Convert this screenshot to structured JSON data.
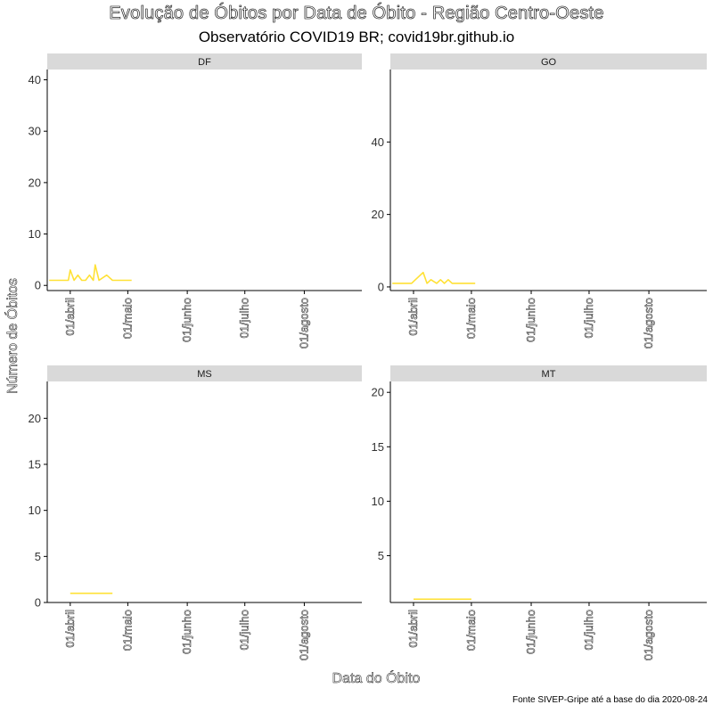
{
  "title": "Evolução de Óbitos por Data de Óbito - Região Centro-Oeste",
  "subtitle": "Observatório COVID19 BR; covid19br.github.io",
  "caption": "Fonte  SIVEP-Gripe até a base do dia 2020-08-24",
  "line_color": "#ffe135",
  "chart_data": {
    "type": "line",
    "title": "Evolução de Óbitos por Data de Óbito - Região Centro-Oeste",
    "subtitle": "Observatório COVID19 BR; covid19br.github.io",
    "xlabel": "Data do Óbito",
    "ylabel": "Número de Óbitos",
    "x_ticks": [
      {
        "label": "01/abril",
        "date": "2020-04-01"
      },
      {
        "label": "01/maio",
        "date": "2020-05-01"
      },
      {
        "label": "01/junho",
        "date": "2020-06-01"
      },
      {
        "label": "01/julho",
        "date": "2020-07-01"
      },
      {
        "label": "01/agosto",
        "date": "2020-08-01"
      }
    ],
    "xlim": [
      "2020-03-20",
      "2020-08-31"
    ],
    "panels": [
      {
        "name": "DF",
        "ylim": [
          -1,
          42
        ],
        "y_ticks": [
          0,
          10,
          20,
          30,
          40
        ],
        "x": [
          "2020-03-21",
          "2020-03-31",
          "2020-04-01",
          "2020-04-03",
          "2020-04-05",
          "2020-04-07",
          "2020-04-09",
          "2020-04-11",
          "2020-04-13",
          "2020-04-14",
          "2020-04-16",
          "2020-04-20",
          "2020-04-23",
          "2020-05-03"
        ],
        "y": [
          1,
          1,
          3,
          1,
          2,
          1,
          1,
          2,
          1,
          4,
          1,
          2,
          1,
          1
        ]
      },
      {
        "name": "GO",
        "ylim": [
          -1,
          60
        ],
        "y_ticks": [
          0,
          20,
          40
        ],
        "x": [
          "2020-03-21",
          "2020-03-31",
          "2020-04-02",
          "2020-04-06",
          "2020-04-08",
          "2020-04-10",
          "2020-04-13",
          "2020-04-15",
          "2020-04-17",
          "2020-04-19",
          "2020-04-21",
          "2020-05-03"
        ],
        "y": [
          1,
          1,
          2,
          4,
          1,
          2,
          1,
          2,
          1,
          2,
          1,
          1
        ]
      },
      {
        "name": "MS",
        "ylim": [
          0,
          24
        ],
        "y_ticks": [
          0,
          5,
          10,
          15,
          20
        ],
        "x": [
          "2020-04-01",
          "2020-04-23"
        ],
        "y": [
          1,
          1
        ]
      },
      {
        "name": "MT",
        "ylim": [
          0.7,
          21
        ],
        "y_ticks": [
          5,
          10,
          15,
          20
        ],
        "x": [
          "2020-04-01",
          "2020-05-01"
        ],
        "y": [
          1,
          1
        ]
      }
    ]
  }
}
